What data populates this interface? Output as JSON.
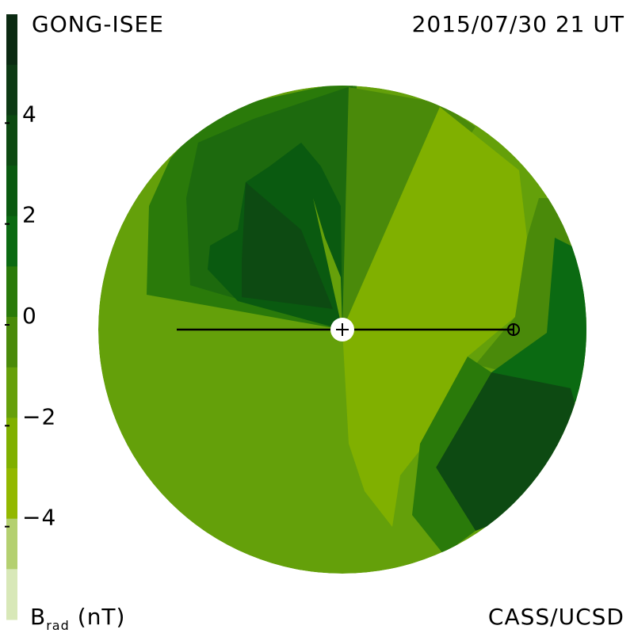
{
  "header": {
    "source": "GONG-ISEE",
    "timestamp": "2015/07/30 21 UT"
  },
  "footer": {
    "credit": "CASS/UCSD"
  },
  "colorbar": {
    "label": "B",
    "label_sub": "rad",
    "unit": "(nT)",
    "range": [
      -6,
      6
    ],
    "colors": [
      "#0b2a12",
      "#0d3a14",
      "#0d4a12",
      "#0a5a10",
      "#0b6a12",
      "#2a7a0a",
      "#4a8a0a",
      "#66a00a",
      "#80b000",
      "#93b800",
      "#b4d070",
      "#d8e8b8"
    ],
    "ticks": [
      4,
      2,
      0,
      {
        "value": -2,
        "label": "−2"
      },
      {
        "value": -4,
        "label": "−4"
      }
    ]
  }
}
